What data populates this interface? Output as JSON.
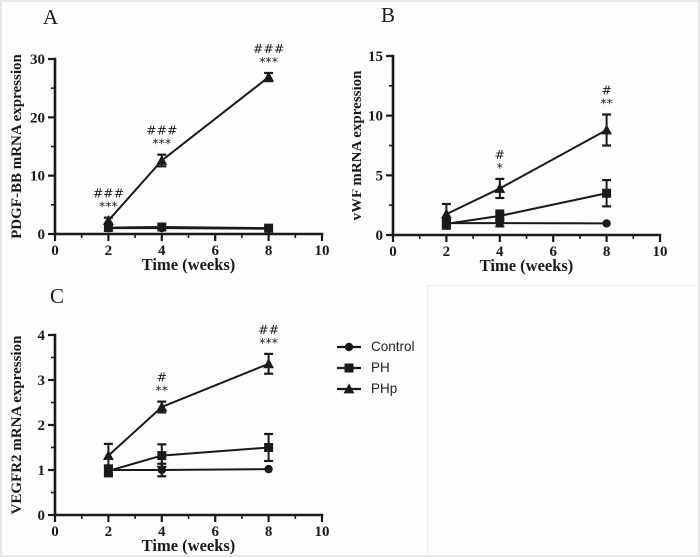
{
  "figure": {
    "background": "#ffffff",
    "border_color": "#e8e8e8",
    "ink_color": "#1a1a1a"
  },
  "legend": {
    "entries": [
      {
        "label": "Control",
        "marker": "circle"
      },
      {
        "label": "PH",
        "marker": "square"
      },
      {
        "label": "PHp",
        "marker": "triangle"
      }
    ]
  },
  "chart_data": [
    {
      "panel_label": "A",
      "type": "line",
      "title": "",
      "xlabel": "Time (weeks)",
      "ylabel": "PDGF-BB mRNA expression",
      "xlim": [
        0,
        10
      ],
      "ylim": [
        0,
        30
      ],
      "xticks": [
        0,
        2,
        4,
        6,
        8,
        10
      ],
      "yticks": [
        0,
        10,
        20,
        30
      ],
      "x": [
        2,
        4,
        8
      ],
      "series": [
        {
          "name": "Control",
          "marker": "circle",
          "values": [
            1.0,
            1.0,
            0.9
          ],
          "errors": [
            0,
            0,
            0
          ]
        },
        {
          "name": "PH",
          "marker": "square",
          "values": [
            1.1,
            1.2,
            1.0
          ],
          "errors": [
            0,
            0,
            0
          ]
        },
        {
          "name": "PHp",
          "marker": "triangle",
          "values": [
            2.3,
            12.6,
            26.9
          ],
          "errors": [
            0.5,
            1.0,
            0.7
          ]
        }
      ],
      "annotations": [
        {
          "x": 2,
          "series": "PHp",
          "lines": [
            "###",
            "***"
          ]
        },
        {
          "x": 4,
          "series": "PHp",
          "lines": [
            "###",
            "***"
          ]
        },
        {
          "x": 8,
          "series": "PHp",
          "lines": [
            "###",
            "***"
          ]
        }
      ]
    },
    {
      "panel_label": "B",
      "type": "line",
      "title": "",
      "xlabel": "Time (weeks)",
      "ylabel": "vWF mRNA expression",
      "xlim": [
        0,
        10
      ],
      "ylim": [
        0,
        15
      ],
      "xticks": [
        0,
        2,
        4,
        6,
        8,
        10
      ],
      "yticks": [
        0,
        5,
        10,
        15
      ],
      "x": [
        2,
        4,
        8
      ],
      "series": [
        {
          "name": "Control",
          "marker": "circle",
          "values": [
            1.0,
            1.0,
            0.97
          ],
          "errors": [
            0.2,
            0.28,
            0
          ]
        },
        {
          "name": "PH",
          "marker": "square",
          "values": [
            0.93,
            1.6,
            3.5
          ],
          "errors": [
            0.4,
            0.45,
            1.1
          ]
        },
        {
          "name": "PHp",
          "marker": "triangle",
          "values": [
            1.75,
            3.9,
            8.8
          ],
          "errors": [
            0.85,
            0.8,
            1.3
          ]
        }
      ],
      "annotations": [
        {
          "x": 4,
          "series": "PHp",
          "lines": [
            "#",
            "*"
          ]
        },
        {
          "x": 8,
          "series": "PHp",
          "lines": [
            "#",
            "**"
          ]
        }
      ]
    },
    {
      "panel_label": "C",
      "type": "line",
      "title": "",
      "xlabel": "Time (weeks)",
      "ylabel": "VEGFR2 mRNA expression",
      "xlim": [
        0,
        10
      ],
      "ylim": [
        0,
        4
      ],
      "xticks": [
        0,
        2,
        4,
        6,
        8,
        10
      ],
      "yticks": [
        0,
        1,
        2,
        3,
        4
      ],
      "x": [
        2,
        4,
        8
      ],
      "series": [
        {
          "name": "Control",
          "marker": "circle",
          "values": [
            1.0,
            1.0,
            1.02
          ],
          "errors": [
            0.1,
            0.14,
            0
          ]
        },
        {
          "name": "PH",
          "marker": "square",
          "values": [
            0.98,
            1.32,
            1.5
          ],
          "errors": [
            0.12,
            0.25,
            0.3
          ]
        },
        {
          "name": "PHp",
          "marker": "triangle",
          "values": [
            1.32,
            2.4,
            3.36
          ],
          "errors": [
            0.26,
            0.12,
            0.22
          ]
        }
      ],
      "annotations": [
        {
          "x": 4,
          "series": "PHp",
          "lines": [
            "#",
            "**"
          ]
        },
        {
          "x": 8,
          "series": "PHp",
          "lines": [
            "##",
            "***"
          ]
        }
      ]
    }
  ]
}
